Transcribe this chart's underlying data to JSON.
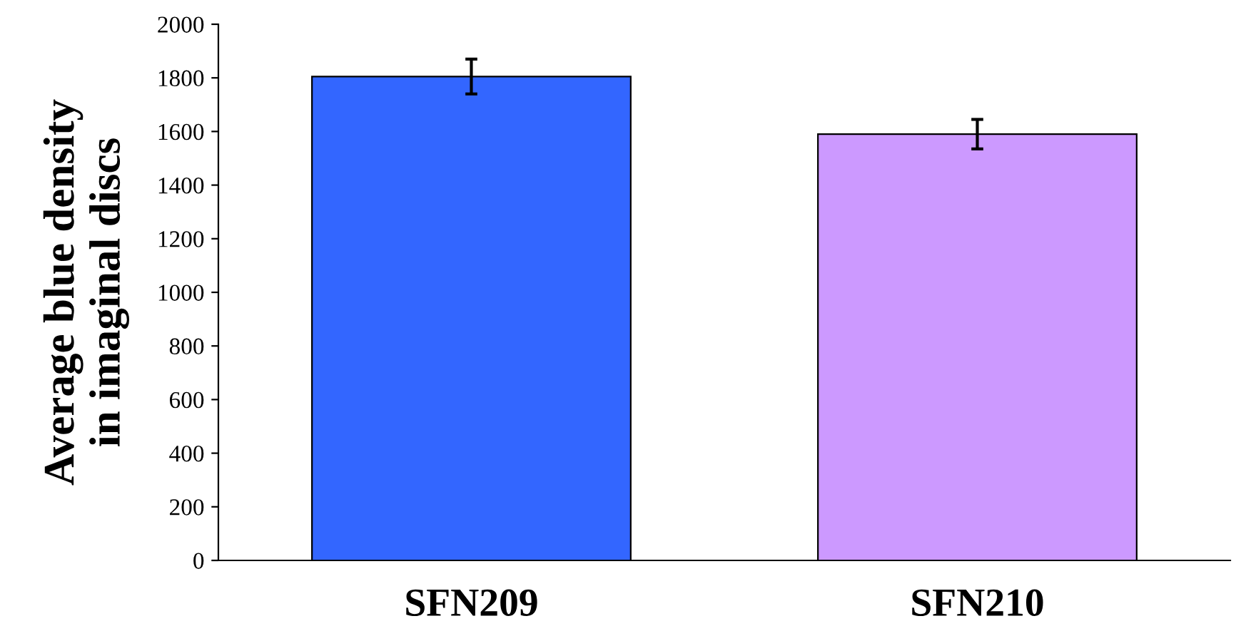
{
  "chart_data": {
    "type": "bar",
    "ylabel": "Average blue density\nin imaginal discs",
    "categories": [
      "SFN209",
      "SFN210"
    ],
    "values": [
      1805,
      1590
    ],
    "errors": [
      65,
      55
    ],
    "colors": [
      "#3366ff",
      "#cc99ff"
    ],
    "ylim": [
      0,
      2000
    ],
    "yticks": [
      0,
      200,
      400,
      600,
      800,
      1000,
      1200,
      1400,
      1600,
      1800,
      2000
    ],
    "grid": false,
    "legend": false
  }
}
